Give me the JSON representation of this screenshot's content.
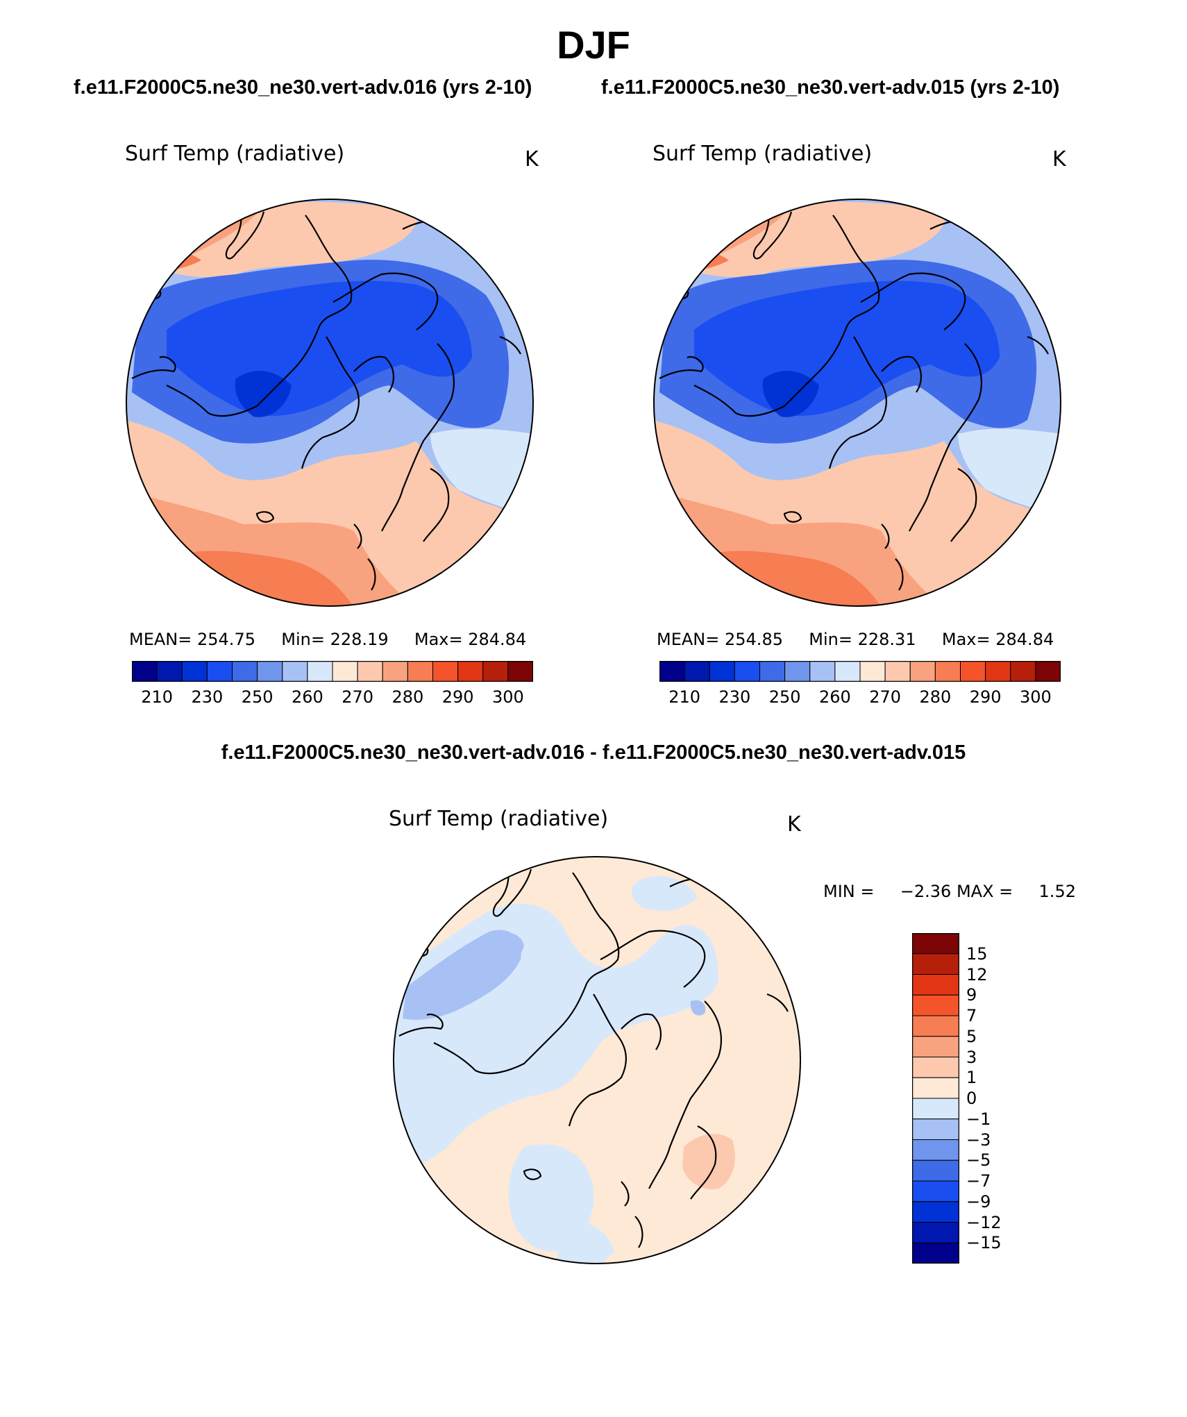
{
  "season": "DJF",
  "panels": [
    {
      "title": "f.e11.F2000C5.ne30_ne30.vert-adv.016 (yrs 2-10)",
      "variable": "Surf Temp (radiative)",
      "unit": "K",
      "mean_label": "MEAN=",
      "mean": "254.75",
      "min_label": "Min=",
      "min": "228.19",
      "max_label": "Max=",
      "max": "284.84"
    },
    {
      "title": "f.e11.F2000C5.ne30_ne30.vert-adv.015 (yrs 2-10)",
      "variable": "Surf Temp (radiative)",
      "unit": "K",
      "mean_label": "MEAN=",
      "mean": "254.85",
      "min_label": "Min=",
      "min": "228.31",
      "max_label": "Max=",
      "max": "284.84"
    }
  ],
  "abs_colorbar": {
    "colors": [
      "#00008b",
      "#0018b0",
      "#0032d6",
      "#1a4ef0",
      "#3f6ae8",
      "#7095ec",
      "#a7c1f5",
      "#d8e8fb",
      "#fde9d6",
      "#fcc9ae",
      "#f9a27f",
      "#f77d53",
      "#f5542a",
      "#e33614",
      "#b6200b",
      "#7d0505"
    ],
    "tick_labels": [
      "210",
      "230",
      "250",
      "260",
      "270",
      "280",
      "290",
      "300"
    ]
  },
  "diff_panel": {
    "title": "f.e11.F2000C5.ne30_ne30.vert-adv.016 - f.e11.F2000C5.ne30_ne30.vert-adv.015",
    "variable": "Surf Temp (radiative)",
    "unit": "K",
    "min_label": "MIN =",
    "min": "−2.36",
    "max_label": "MAX =",
    "max": "1.52"
  },
  "diff_colorbar": {
    "colors": [
      "#7d0505",
      "#b6200b",
      "#e33614",
      "#f5542a",
      "#f77d53",
      "#f9a27f",
      "#fcc9ae",
      "#fde9d6",
      "#d8e8fb",
      "#a7c1f5",
      "#7095ec",
      "#3f6ae8",
      "#1a4ef0",
      "#0032d6",
      "#0018b0",
      "#00008b"
    ],
    "tick_labels": [
      "15",
      "12",
      "9",
      "7",
      "5",
      "3",
      "1",
      "0",
      "−1",
      "−3",
      "−5",
      "−7",
      "−9",
      "−12",
      "−15"
    ]
  }
}
